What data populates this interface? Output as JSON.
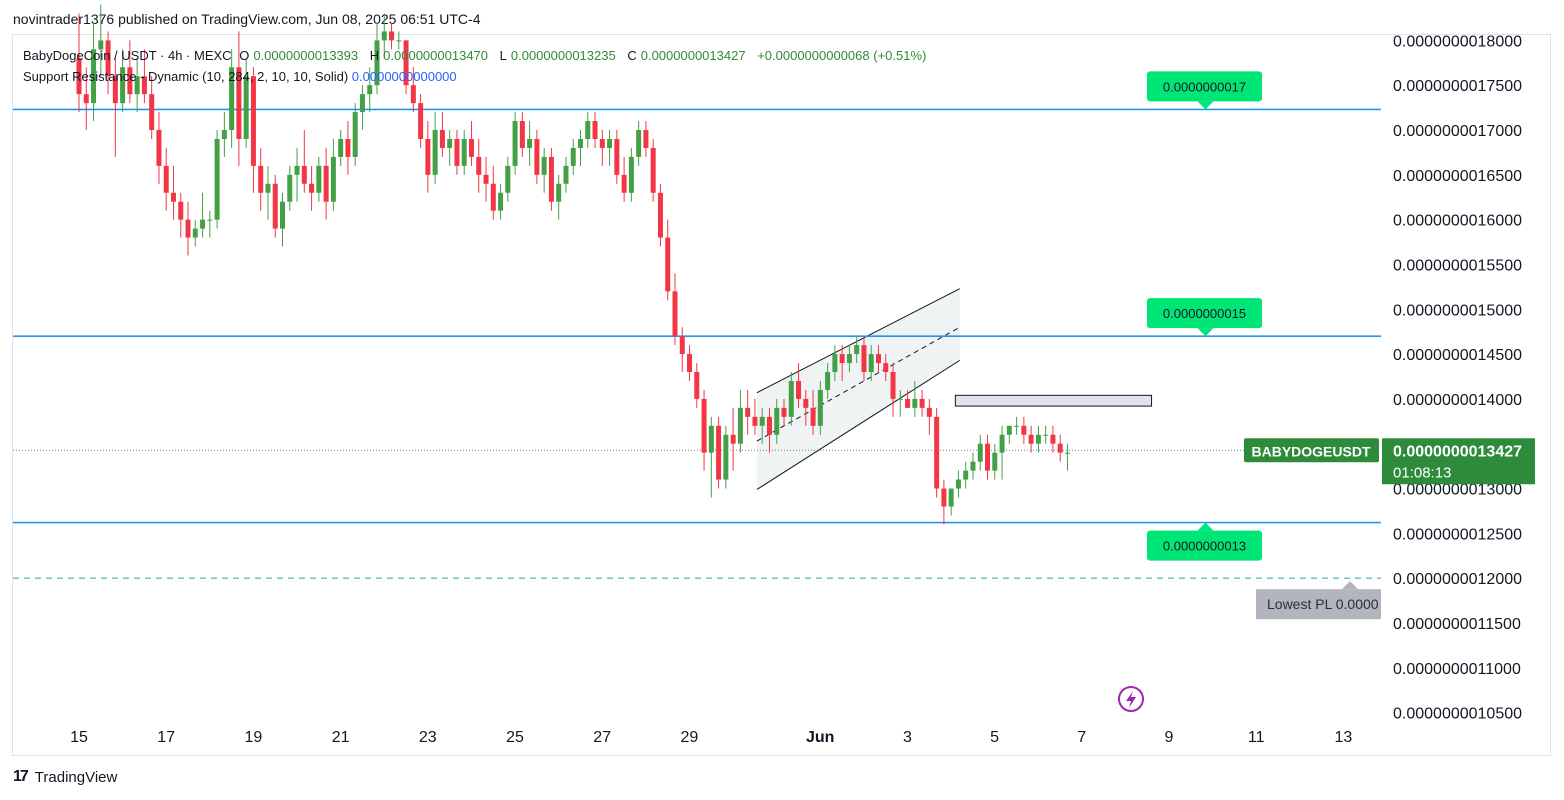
{
  "header": {
    "published_line": "novintrader1376 published on TradingView.com, Jun 08, 2025 06:51 UTC-4"
  },
  "legend": {
    "symbol": "BabyDogeCoin / USDT · 4h · MEXC",
    "open_label": "O",
    "open": "0.0000000013393",
    "high_label": "H",
    "high": "0.0000000013470",
    "low_label": "L",
    "low": "0.0000000013235",
    "close_label": "C",
    "close": "0.0000000013427",
    "change": "+0.0000000000068 (+0.51%)",
    "indicator_name": "Support Resistance - Dynamic (10, 284, 2, 10, 10, Solid)",
    "indicator_value": "0.0000000000000"
  },
  "footer": {
    "brand": "TradingView",
    "logo_icon": "tradingview-logo-icon"
  },
  "colors": {
    "up": "#43a047",
    "down": "#f23645",
    "level_line": "#2196f3",
    "label_bg": "#00e676",
    "symbol_tag_bg": "#2e8b3c",
    "dashed_line": "#26a69a",
    "lowest_tag_bg": "#b2b5be",
    "last_line": "#787b86",
    "channel_fill": "#e8eef0"
  },
  "chart_data": {
    "type": "candlestick",
    "symbol_tag": "BABYDOGEUSDT",
    "last_price": "0.0000000013427",
    "countdown": "01:08:13",
    "y_unit": "1e-9 USDT",
    "ylim": [
      1.044,
      1.806
    ],
    "y_ticks": [
      {
        "value": 1.8,
        "label": "0.0000000018000"
      },
      {
        "value": 1.75,
        "label": "0.0000000017500"
      },
      {
        "value": 1.7,
        "label": "0.0000000017000"
      },
      {
        "value": 1.65,
        "label": "0.0000000016500"
      },
      {
        "value": 1.6,
        "label": "0.0000000016000"
      },
      {
        "value": 1.55,
        "label": "0.0000000015500"
      },
      {
        "value": 1.5,
        "label": "0.0000000015000"
      },
      {
        "value": 1.45,
        "label": "0.0000000014500"
      },
      {
        "value": 1.4,
        "label": "0.0000000014000"
      },
      {
        "value": 1.35,
        "label": "0.0000000013500"
      },
      {
        "value": 1.3,
        "label": "0.0000000013000"
      },
      {
        "value": 1.25,
        "label": "0.0000000012500"
      },
      {
        "value": 1.2,
        "label": "0.0000000012000"
      },
      {
        "value": 1.15,
        "label": "0.0000000011500"
      },
      {
        "value": 1.1,
        "label": "0.0000000011000"
      },
      {
        "value": 1.05,
        "label": "0.0000000010500"
      }
    ],
    "x_unit": "days since May 14, 2025",
    "xlim": [
      0,
      31.2
    ],
    "x_ticks": [
      {
        "value": 1,
        "label": "15"
      },
      {
        "value": 3,
        "label": "17"
      },
      {
        "value": 5,
        "label": "19"
      },
      {
        "value": 7,
        "label": "21"
      },
      {
        "value": 9,
        "label": "23"
      },
      {
        "value": 11,
        "label": "25"
      },
      {
        "value": 13,
        "label": "27"
      },
      {
        "value": 15,
        "label": "29"
      },
      {
        "value": 18,
        "label": "Jun",
        "bold": true
      },
      {
        "value": 20,
        "label": "3"
      },
      {
        "value": 22,
        "label": "5"
      },
      {
        "value": 24,
        "label": "7"
      },
      {
        "value": 26,
        "label": "9"
      },
      {
        "value": 28,
        "label": "11"
      },
      {
        "value": 30,
        "label": "13"
      }
    ],
    "levels": [
      {
        "value": 1.723,
        "label": "0.0000000017",
        "label_side": "above"
      },
      {
        "value": 1.47,
        "label": "0.0000000015",
        "label_side": "above"
      },
      {
        "value": 1.262,
        "label": "0.0000000013",
        "label_side": "below"
      }
    ],
    "lowest_pl": {
      "value": 1.2,
      "label": "Lowest PL 0.0000"
    },
    "channel": {
      "upper": [
        [
          16.55,
          1.407
        ],
        [
          21.2,
          1.523
        ]
      ],
      "lower": [
        [
          16.55,
          1.299
        ],
        [
          21.2,
          1.443
        ]
      ],
      "mid": [
        [
          16.55,
          1.353
        ],
        [
          21.2,
          1.48
        ]
      ]
    },
    "box": {
      "x0": 21.1,
      "x1": 25.6,
      "y0": 1.392,
      "y1": 1.404
    },
    "candles_start": 0,
    "candles_step": 0.1667,
    "candles": [
      [
        1.78,
        1.83,
        1.72,
        1.74
      ],
      [
        1.74,
        1.77,
        1.7,
        1.73
      ],
      [
        1.73,
        1.82,
        1.71,
        1.79
      ],
      [
        1.79,
        1.84,
        1.76,
        1.8
      ],
      [
        1.8,
        1.81,
        1.74,
        1.76
      ],
      [
        1.76,
        1.78,
        1.67,
        1.73
      ],
      [
        1.73,
        1.79,
        1.72,
        1.77
      ],
      [
        1.77,
        1.8,
        1.73,
        1.74
      ],
      [
        1.74,
        1.78,
        1.72,
        1.76
      ],
      [
        1.76,
        1.79,
        1.73,
        1.74
      ],
      [
        1.74,
        1.76,
        1.69,
        1.7
      ],
      [
        1.7,
        1.72,
        1.64,
        1.66
      ],
      [
        1.66,
        1.68,
        1.61,
        1.63
      ],
      [
        1.63,
        1.66,
        1.6,
        1.62
      ],
      [
        1.62,
        1.63,
        1.58,
        1.6
      ],
      [
        1.6,
        1.62,
        1.56,
        1.58
      ],
      [
        1.58,
        1.6,
        1.57,
        1.59
      ],
      [
        1.59,
        1.63,
        1.58,
        1.6
      ],
      [
        1.6,
        1.61,
        1.58,
        1.6
      ],
      [
        1.6,
        1.7,
        1.59,
        1.69
      ],
      [
        1.69,
        1.72,
        1.67,
        1.7
      ],
      [
        1.7,
        1.79,
        1.68,
        1.77
      ],
      [
        1.77,
        1.81,
        1.66,
        1.69
      ],
      [
        1.69,
        1.78,
        1.68,
        1.76
      ],
      [
        1.76,
        1.77,
        1.63,
        1.66
      ],
      [
        1.66,
        1.68,
        1.61,
        1.63
      ],
      [
        1.63,
        1.66,
        1.6,
        1.64
      ],
      [
        1.64,
        1.65,
        1.58,
        1.59
      ],
      [
        1.59,
        1.63,
        1.57,
        1.62
      ],
      [
        1.62,
        1.66,
        1.61,
        1.65
      ],
      [
        1.65,
        1.68,
        1.62,
        1.66
      ],
      [
        1.66,
        1.7,
        1.63,
        1.64
      ],
      [
        1.64,
        1.66,
        1.61,
        1.63
      ],
      [
        1.63,
        1.67,
        1.62,
        1.66
      ],
      [
        1.66,
        1.68,
        1.6,
        1.62
      ],
      [
        1.62,
        1.69,
        1.61,
        1.67
      ],
      [
        1.67,
        1.7,
        1.66,
        1.69
      ],
      [
        1.69,
        1.71,
        1.65,
        1.67
      ],
      [
        1.67,
        1.73,
        1.66,
        1.72
      ],
      [
        1.72,
        1.75,
        1.7,
        1.74
      ],
      [
        1.74,
        1.77,
        1.72,
        1.75
      ],
      [
        1.75,
        1.82,
        1.74,
        1.8
      ],
      [
        1.8,
        1.83,
        1.78,
        1.81
      ],
      [
        1.81,
        1.82,
        1.79,
        1.8
      ],
      [
        1.8,
        1.81,
        1.79,
        1.8
      ],
      [
        1.8,
        1.8,
        1.74,
        1.75
      ],
      [
        1.75,
        1.77,
        1.72,
        1.73
      ],
      [
        1.73,
        1.74,
        1.68,
        1.69
      ],
      [
        1.69,
        1.71,
        1.63,
        1.65
      ],
      [
        1.65,
        1.72,
        1.64,
        1.7
      ],
      [
        1.7,
        1.72,
        1.67,
        1.68
      ],
      [
        1.68,
        1.7,
        1.66,
        1.69
      ],
      [
        1.69,
        1.7,
        1.65,
        1.66
      ],
      [
        1.66,
        1.7,
        1.65,
        1.69
      ],
      [
        1.69,
        1.71,
        1.66,
        1.67
      ],
      [
        1.67,
        1.69,
        1.63,
        1.65
      ],
      [
        1.65,
        1.67,
        1.62,
        1.64
      ],
      [
        1.64,
        1.66,
        1.6,
        1.61
      ],
      [
        1.61,
        1.64,
        1.6,
        1.63
      ],
      [
        1.63,
        1.67,
        1.62,
        1.66
      ],
      [
        1.66,
        1.72,
        1.65,
        1.71
      ],
      [
        1.71,
        1.72,
        1.67,
        1.68
      ],
      [
        1.68,
        1.71,
        1.66,
        1.69
      ],
      [
        1.69,
        1.7,
        1.64,
        1.65
      ],
      [
        1.65,
        1.68,
        1.63,
        1.67
      ],
      [
        1.67,
        1.68,
        1.61,
        1.62
      ],
      [
        1.62,
        1.65,
        1.6,
        1.64
      ],
      [
        1.64,
        1.67,
        1.63,
        1.66
      ],
      [
        1.66,
        1.69,
        1.65,
        1.68
      ],
      [
        1.68,
        1.7,
        1.66,
        1.69
      ],
      [
        1.69,
        1.72,
        1.68,
        1.71
      ],
      [
        1.71,
        1.72,
        1.68,
        1.69
      ],
      [
        1.69,
        1.7,
        1.66,
        1.68
      ],
      [
        1.68,
        1.7,
        1.66,
        1.69
      ],
      [
        1.69,
        1.7,
        1.64,
        1.65
      ],
      [
        1.65,
        1.67,
        1.62,
        1.63
      ],
      [
        1.63,
        1.68,
        1.62,
        1.67
      ],
      [
        1.67,
        1.71,
        1.66,
        1.7
      ],
      [
        1.7,
        1.71,
        1.67,
        1.68
      ],
      [
        1.68,
        1.69,
        1.62,
        1.63
      ],
      [
        1.63,
        1.64,
        1.57,
        1.58
      ],
      [
        1.58,
        1.6,
        1.51,
        1.52
      ],
      [
        1.52,
        1.54,
        1.46,
        1.47
      ],
      [
        1.47,
        1.48,
        1.43,
        1.45
      ],
      [
        1.45,
        1.46,
        1.42,
        1.43
      ],
      [
        1.43,
        1.44,
        1.39,
        1.4
      ],
      [
        1.4,
        1.41,
        1.32,
        1.34
      ],
      [
        1.34,
        1.38,
        1.29,
        1.37
      ],
      [
        1.37,
        1.38,
        1.3,
        1.31
      ],
      [
        1.31,
        1.37,
        1.3,
        1.36
      ],
      [
        1.36,
        1.39,
        1.32,
        1.35
      ],
      [
        1.35,
        1.41,
        1.34,
        1.39
      ],
      [
        1.39,
        1.41,
        1.36,
        1.38
      ],
      [
        1.38,
        1.4,
        1.36,
        1.37
      ],
      [
        1.37,
        1.39,
        1.35,
        1.38
      ],
      [
        1.38,
        1.39,
        1.34,
        1.36
      ],
      [
        1.36,
        1.4,
        1.35,
        1.39
      ],
      [
        1.39,
        1.4,
        1.37,
        1.38
      ],
      [
        1.38,
        1.43,
        1.37,
        1.42
      ],
      [
        1.42,
        1.44,
        1.39,
        1.4
      ],
      [
        1.4,
        1.41,
        1.37,
        1.39
      ],
      [
        1.39,
        1.41,
        1.36,
        1.37
      ],
      [
        1.37,
        1.42,
        1.36,
        1.41
      ],
      [
        1.41,
        1.44,
        1.4,
        1.43
      ],
      [
        1.43,
        1.46,
        1.42,
        1.45
      ],
      [
        1.45,
        1.46,
        1.42,
        1.44
      ],
      [
        1.44,
        1.46,
        1.43,
        1.45
      ],
      [
        1.45,
        1.47,
        1.44,
        1.46
      ],
      [
        1.46,
        1.47,
        1.42,
        1.43
      ],
      [
        1.43,
        1.46,
        1.42,
        1.45
      ],
      [
        1.45,
        1.46,
        1.43,
        1.44
      ],
      [
        1.44,
        1.45,
        1.42,
        1.43
      ],
      [
        1.43,
        1.44,
        1.38,
        1.4
      ],
      [
        1.4,
        1.41,
        1.38,
        1.4
      ],
      [
        1.4,
        1.41,
        1.39,
        1.39
      ],
      [
        1.39,
        1.42,
        1.38,
        1.4
      ],
      [
        1.4,
        1.41,
        1.38,
        1.39
      ],
      [
        1.39,
        1.4,
        1.36,
        1.38
      ],
      [
        1.38,
        1.39,
        1.29,
        1.3
      ],
      [
        1.3,
        1.31,
        1.26,
        1.28
      ],
      [
        1.28,
        1.3,
        1.27,
        1.3
      ],
      [
        1.3,
        1.32,
        1.29,
        1.31
      ],
      [
        1.31,
        1.33,
        1.3,
        1.32
      ],
      [
        1.32,
        1.34,
        1.31,
        1.33
      ],
      [
        1.33,
        1.36,
        1.32,
        1.35
      ],
      [
        1.35,
        1.36,
        1.31,
        1.32
      ],
      [
        1.32,
        1.35,
        1.31,
        1.34
      ],
      [
        1.34,
        1.37,
        1.31,
        1.36
      ],
      [
        1.36,
        1.37,
        1.35,
        1.37
      ],
      [
        1.37,
        1.38,
        1.36,
        1.37
      ],
      [
        1.37,
        1.38,
        1.35,
        1.36
      ],
      [
        1.36,
        1.37,
        1.34,
        1.35
      ],
      [
        1.35,
        1.37,
        1.34,
        1.36
      ],
      [
        1.36,
        1.37,
        1.35,
        1.36
      ],
      [
        1.36,
        1.37,
        1.34,
        1.35
      ],
      [
        1.35,
        1.36,
        1.33,
        1.34
      ],
      [
        1.34,
        1.35,
        1.32,
        1.34
      ]
    ]
  }
}
